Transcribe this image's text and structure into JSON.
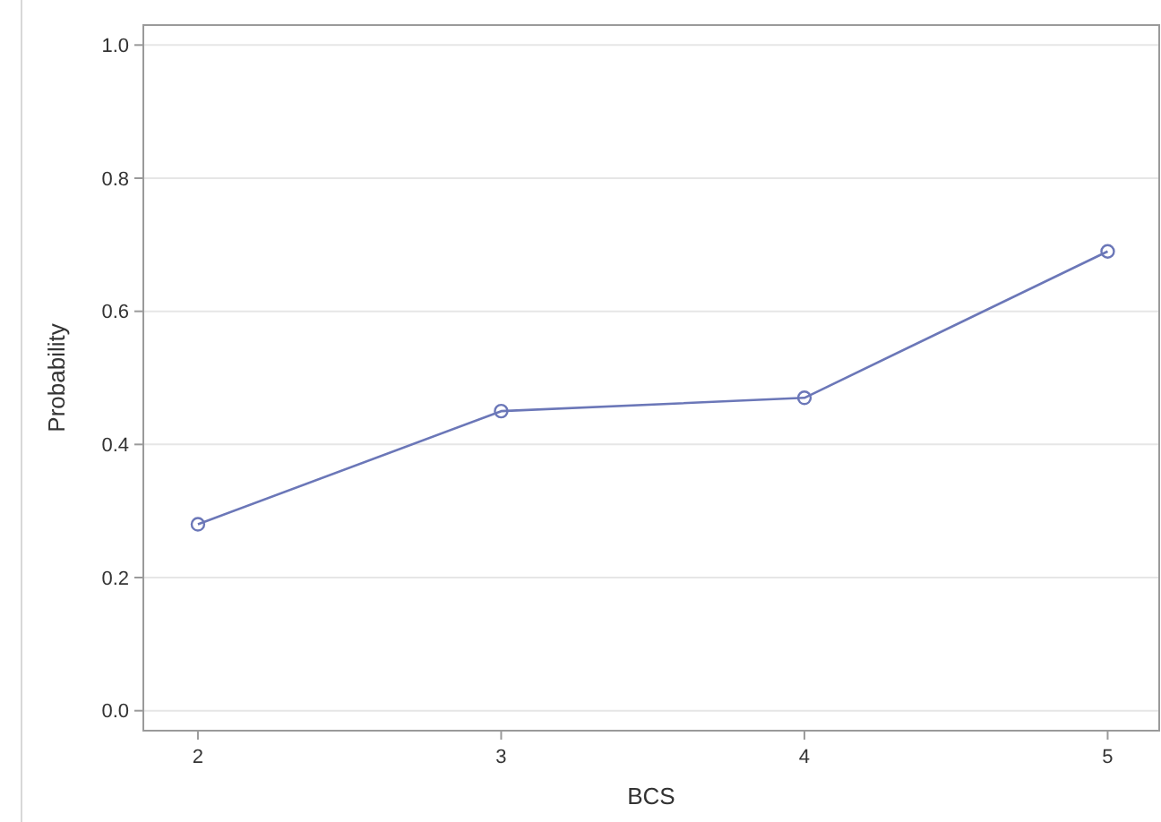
{
  "chart_data": {
    "type": "line",
    "xlabel": "BCS",
    "ylabel": "Probability",
    "x": [
      2,
      3,
      4,
      5
    ],
    "series": [
      {
        "color": "#6b77b8",
        "values": [
          0.28,
          0.45,
          0.47,
          0.69
        ]
      }
    ],
    "xlim": [
      1.82,
      5.17
    ],
    "xticks": [
      2,
      3,
      4,
      5
    ],
    "ylim": [
      -0.03,
      1.03
    ],
    "yticks": [
      {
        "value": 0,
        "label": "0.0"
      },
      {
        "value": 0.2,
        "label": "0.2"
      },
      {
        "value": 0.4,
        "label": "0.4"
      },
      {
        "value": 0.6,
        "label": "0.6"
      },
      {
        "value": 0.8,
        "label": "0.8"
      },
      {
        "value": 1,
        "label": "1.0"
      }
    ],
    "grid": "y",
    "marker": "circle",
    "line_style": "solid"
  }
}
